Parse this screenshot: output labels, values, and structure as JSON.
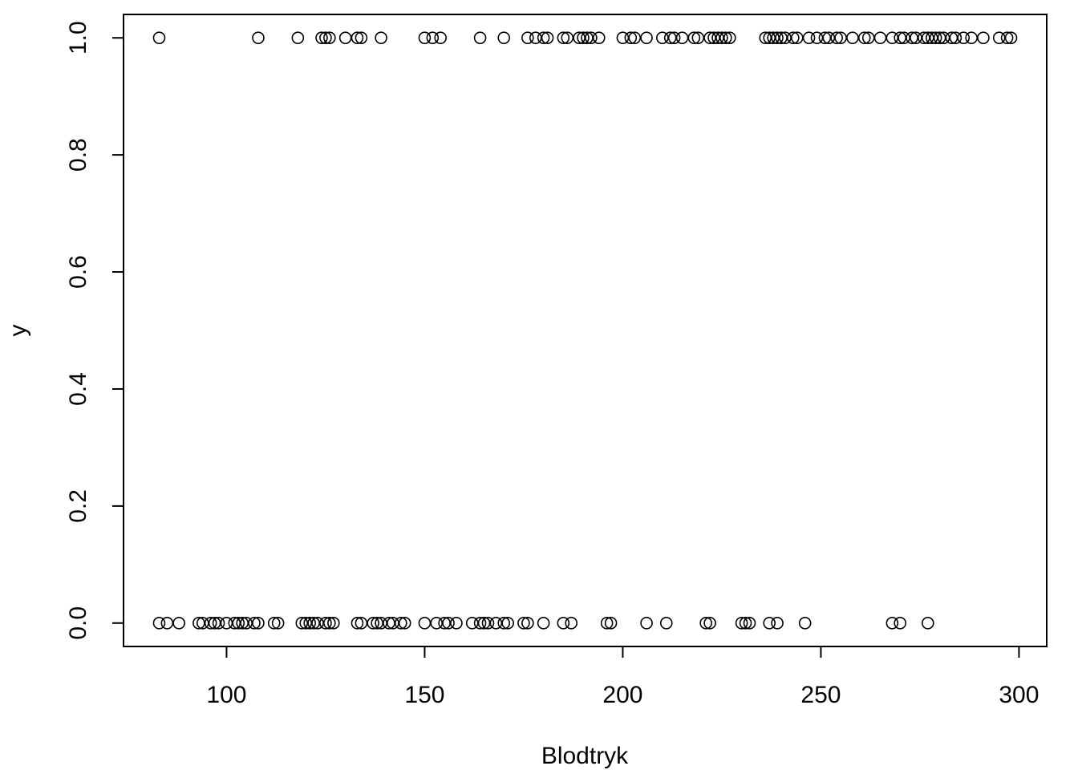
{
  "chart_data": {
    "type": "scatter",
    "title": "",
    "xlabel": "Blodtryk",
    "ylabel": "y",
    "xlim": [
      74,
      307
    ],
    "ylim": [
      -0.04,
      1.04
    ],
    "xticks": [
      100,
      150,
      200,
      250,
      300
    ],
    "xtick_labels": [
      "100",
      "150",
      "200",
      "250",
      "300"
    ],
    "yticks": [
      0.0,
      0.2,
      0.4,
      0.6,
      0.8,
      1.0
    ],
    "ytick_labels": [
      "0.0",
      "0.2",
      "0.4",
      "0.6",
      "0.8",
      "1.0"
    ],
    "grid": false,
    "marker": "open-circle",
    "series": [
      {
        "x": [
          83,
          85,
          88,
          93,
          94,
          96,
          97,
          98,
          100,
          102,
          103,
          104,
          105,
          107,
          108,
          112,
          113,
          119,
          120,
          121,
          122,
          123,
          125,
          126,
          127,
          133,
          134,
          137,
          138,
          139,
          141,
          142,
          144,
          145,
          150,
          153,
          155,
          156,
          158,
          162,
          164,
          165,
          166,
          168,
          170,
          171,
          175,
          176,
          180,
          185,
          187,
          196,
          197,
          206,
          211,
          221,
          222,
          230,
          231,
          232,
          237,
          239,
          246,
          268,
          270,
          277
        ],
        "y": [
          0,
          0,
          0,
          0,
          0,
          0,
          0,
          0,
          0,
          0,
          0,
          0,
          0,
          0,
          0,
          0,
          0,
          0,
          0,
          0,
          0,
          0,
          0,
          0,
          0,
          0,
          0,
          0,
          0,
          0,
          0,
          0,
          0,
          0,
          0,
          0,
          0,
          0,
          0,
          0,
          0,
          0,
          0,
          0,
          0,
          0,
          0,
          0,
          0,
          0,
          0,
          0,
          0,
          0,
          0,
          0,
          0,
          0,
          0,
          0,
          0,
          0,
          0,
          0,
          0,
          0
        ]
      },
      {
        "x": [
          83,
          108,
          118,
          124,
          125,
          126,
          130,
          133,
          134,
          139,
          150,
          152,
          154,
          164,
          170,
          176,
          178,
          180,
          181,
          185,
          186,
          189,
          190,
          191,
          192,
          194,
          200,
          202,
          203,
          206,
          210,
          212,
          213,
          215,
          218,
          219,
          222,
          223,
          224,
          225,
          226,
          227,
          236,
          237,
          238,
          239,
          240,
          241,
          243,
          244,
          247,
          249,
          251,
          252,
          254,
          255,
          258,
          261,
          262,
          265,
          268,
          270,
          271,
          273,
          274,
          276,
          277,
          278,
          279,
          280,
          281,
          283,
          284,
          286,
          288,
          291,
          295,
          297,
          298
        ],
        "y": [
          1,
          1,
          1,
          1,
          1,
          1,
          1,
          1,
          1,
          1,
          1,
          1,
          1,
          1,
          1,
          1,
          1,
          1,
          1,
          1,
          1,
          1,
          1,
          1,
          1,
          1,
          1,
          1,
          1,
          1,
          1,
          1,
          1,
          1,
          1,
          1,
          1,
          1,
          1,
          1,
          1,
          1,
          1,
          1,
          1,
          1,
          1,
          1,
          1,
          1,
          1,
          1,
          1,
          1,
          1,
          1,
          1,
          1,
          1,
          1,
          1,
          1,
          1,
          1,
          1,
          1,
          1,
          1,
          1,
          1,
          1,
          1,
          1,
          1,
          1,
          1,
          1,
          1,
          1
        ]
      }
    ]
  }
}
